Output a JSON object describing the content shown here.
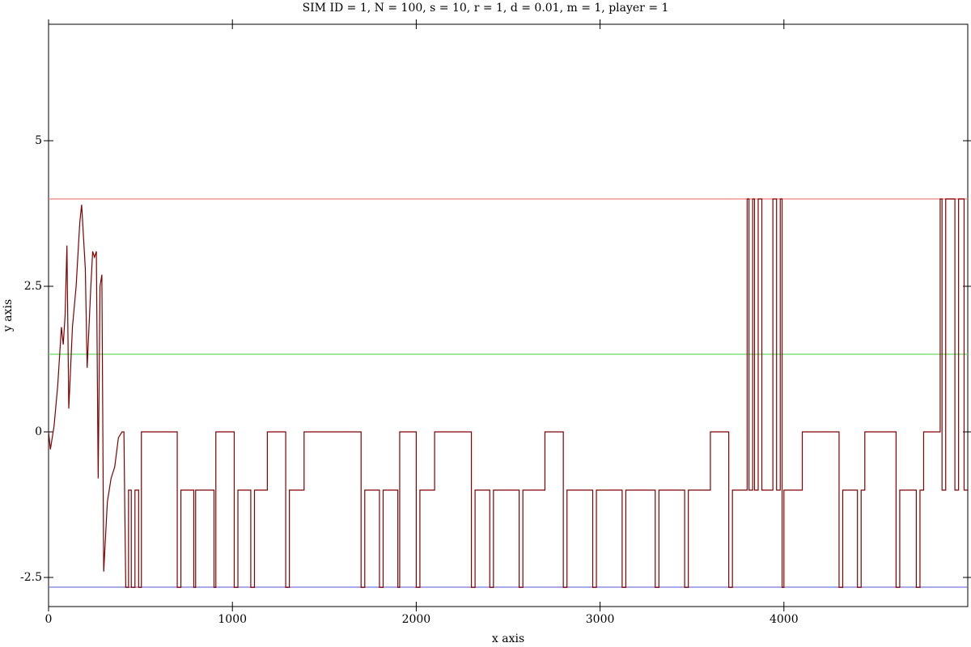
{
  "chart_data": {
    "type": "line",
    "title": "SIM ID = 1, N = 100, s = 10, r = 1, d = 0.01, m = 1, player = 1",
    "x_label": "x axis",
    "y_label": "y axis",
    "xlim": [
      0,
      5000
    ],
    "xticks": [
      0,
      1000,
      2000,
      3000,
      4000
    ],
    "ylim": [
      -3,
      7
    ],
    "yticks": [
      -2.5,
      0,
      2.5,
      5
    ],
    "series": [
      {
        "color": "#f08080",
        "x": [
          0,
          5000
        ],
        "values": [
          4,
          4
        ]
      },
      {
        "color": "#66dd66",
        "x": [
          0,
          5000
        ],
        "values": [
          1.333,
          1.333
        ]
      },
      {
        "color": "#7777dd",
        "x": [
          0,
          5000
        ],
        "values": [
          -2.667,
          -2.667
        ]
      },
      {
        "color": "#800000",
        "x": [
          0,
          10,
          30,
          50,
          70,
          80,
          90,
          100,
          110,
          130,
          150,
          170,
          180,
          200,
          210,
          230,
          240,
          250,
          260,
          270,
          280,
          290,
          300,
          320,
          340,
          360,
          380,
          400,
          410,
          415,
          420,
          435,
          435,
          450,
          450,
          470,
          470,
          490,
          490,
          505,
          505,
          700,
          700,
          720,
          720,
          790,
          790,
          800,
          800,
          900,
          900,
          910,
          910,
          1010,
          1010,
          1030,
          1030,
          1100,
          1100,
          1120,
          1120,
          1190,
          1190,
          1290,
          1290,
          1310,
          1310,
          1390,
          1390,
          1700,
          1700,
          1720,
          1720,
          1800,
          1800,
          1820,
          1820,
          1900,
          1900,
          1910,
          1910,
          2000,
          2000,
          2020,
          2020,
          2100,
          2100,
          2300,
          2300,
          2320,
          2320,
          2400,
          2400,
          2420,
          2420,
          2560,
          2560,
          2580,
          2580,
          2700,
          2700,
          2800,
          2800,
          2820,
          2820,
          2960,
          2960,
          2980,
          2980,
          3120,
          3120,
          3140,
          3140,
          3300,
          3300,
          3320,
          3320,
          3460,
          3460,
          3480,
          3480,
          3600,
          3600,
          3700,
          3700,
          3720,
          3720,
          3800,
          3800,
          3810,
          3810,
          3830,
          3830,
          3840,
          3840,
          3860,
          3860,
          3880,
          3880,
          3940,
          3940,
          3960,
          3960,
          3980,
          3980,
          3990,
          3990,
          4000,
          4000,
          4100,
          4100,
          4300,
          4300,
          4320,
          4320,
          4400,
          4400,
          4420,
          4420,
          4440,
          4440,
          4610,
          4610,
          4630,
          4630,
          4720,
          4720,
          4740,
          4740,
          4760,
          4760,
          4850,
          4850,
          4860,
          4860,
          4880,
          4880,
          4930,
          4930,
          4950,
          4950,
          4980,
          4980,
          5000
        ],
        "values": [
          0,
          -0.3,
          0.1,
          0.8,
          1.8,
          1.5,
          2.0,
          3.2,
          0.4,
          1.8,
          2.5,
          3.6,
          3.9,
          2.8,
          1.1,
          2.5,
          3.1,
          3.0,
          3.1,
          -0.8,
          2.5,
          2.7,
          -2.4,
          -1.2,
          -0.8,
          -0.6,
          -0.1,
          0,
          0,
          -1.4,
          -2.67,
          -2.67,
          -1,
          -1,
          -2.67,
          -2.67,
          -1,
          -1,
          -2.67,
          -2.67,
          0,
          0,
          -2.67,
          -2.67,
          -1,
          -1,
          -2.67,
          -2.67,
          -1,
          -1,
          -2.67,
          -2.67,
          0,
          0,
          -2.67,
          -2.67,
          -1,
          -1,
          -2.67,
          -2.67,
          -1,
          -1,
          0,
          0,
          -2.67,
          -2.67,
          -1,
          -1,
          0,
          0,
          -2.67,
          -2.67,
          -1,
          -1,
          -2.67,
          -2.67,
          -1,
          -1,
          -2.67,
          -2.67,
          0,
          0,
          -2.67,
          -2.67,
          -1,
          -1,
          0,
          0,
          -2.67,
          -2.67,
          -1,
          -1,
          -2.67,
          -2.67,
          -1,
          -1,
          -2.67,
          -2.67,
          -1,
          -1,
          0,
          0,
          -2.67,
          -2.67,
          -1,
          -1,
          -2.67,
          -2.67,
          -1,
          -1,
          -2.67,
          -2.67,
          -1,
          -1,
          -2.67,
          -2.67,
          -1,
          -1,
          -2.67,
          -2.67,
          -1,
          -1,
          0,
          0,
          -2.67,
          -2.67,
          -1,
          -1,
          4,
          4,
          -1,
          -1,
          4,
          4,
          -1,
          -1,
          4,
          4,
          -1,
          -1,
          4,
          4,
          -1,
          -1,
          4,
          4,
          -2.67,
          -2.67,
          -1,
          -1,
          0,
          0,
          -2.67,
          -2.67,
          -1,
          -1,
          -2.67,
          -2.67,
          -1,
          -1,
          0,
          0,
          -2.67,
          -2.67,
          -1,
          -1,
          -2.67,
          -2.67,
          -1,
          -1,
          0,
          0,
          4,
          4,
          -1,
          -1,
          4,
          4,
          -1,
          -1,
          4,
          4,
          -1,
          -1
        ]
      }
    ]
  }
}
